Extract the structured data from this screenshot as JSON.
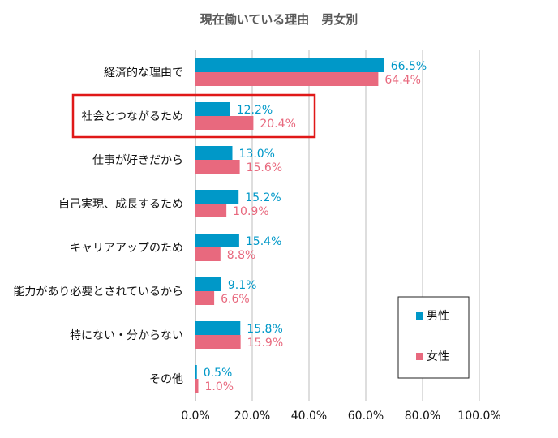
{
  "chart_data": {
    "type": "bar",
    "orientation": "horizontal",
    "title": "現在働いている理由　男女別",
    "categories": [
      "経済的な理由で",
      "社会とつながるため",
      "仕事が好きだから",
      "自己実現、成長するため",
      "キャリアアップのため",
      "能力があり必要とされているから",
      "特にない・分からない",
      "その他"
    ],
    "series": [
      {
        "name": "男性",
        "color": "#0098c8",
        "values": [
          66.5,
          12.2,
          13.0,
          15.2,
          15.4,
          9.1,
          15.8,
          0.5
        ],
        "labels": [
          "66.5%",
          "12.2%",
          "13.0%",
          "15.2%",
          "15.4%",
          "9.1%",
          "15.8%",
          "0.5%"
        ]
      },
      {
        "name": "女性",
        "color": "#e8697e",
        "values": [
          64.4,
          20.4,
          15.6,
          10.9,
          8.8,
          6.6,
          15.9,
          1.0
        ],
        "labels": [
          "64.4%",
          "20.4%",
          "15.6%",
          "10.9%",
          "8.8%",
          "6.6%",
          "15.9%",
          "1.0%"
        ]
      }
    ],
    "xlim": [
      0,
      100
    ],
    "xticks": [
      0,
      20,
      40,
      60,
      80,
      100
    ],
    "xtick_labels": [
      "0.0%",
      "20.0%",
      "40.0%",
      "60.0%",
      "80.0%",
      "100.0%"
    ],
    "highlighted_category": "社会とつながるため",
    "highlight_color": "#e01818",
    "grid": true,
    "legend_position": "bottom-right"
  }
}
